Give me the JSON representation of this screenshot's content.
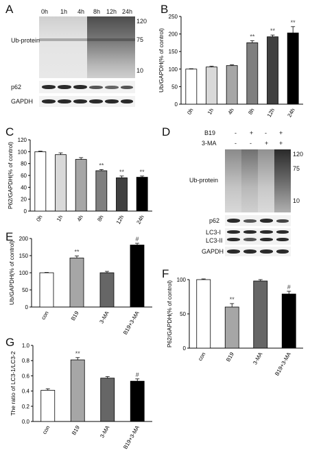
{
  "panels": {
    "A": {
      "letter": "A",
      "lanes": [
        "0h",
        "1h",
        "4h",
        "8h",
        "12h",
        "24h"
      ],
      "markers": [
        "120",
        "75",
        "10"
      ],
      "rows": [
        "Ub-protein",
        "p62",
        "GAPDH"
      ]
    },
    "D": {
      "letter": "D",
      "conditions": [
        {
          "label": "B19",
          "signs": [
            "-",
            "+",
            "-",
            "+"
          ]
        },
        {
          "label": "3-MA",
          "signs": [
            "-",
            "-",
            "+",
            "+"
          ]
        }
      ],
      "markers": [
        "120",
        "75",
        "10"
      ],
      "rows": [
        "Ub-protein",
        "p62",
        "LC3-I",
        "LC3-II",
        "GAPDH"
      ]
    }
  },
  "chart_data": [
    {
      "id": "B",
      "letter": "B",
      "type": "bar",
      "categories": [
        "0h",
        "1h",
        "4h",
        "8h",
        "12h",
        "24h"
      ],
      "values": [
        100,
        106,
        110,
        175,
        192,
        203
      ],
      "errors": [
        1,
        2,
        2,
        6,
        5,
        18
      ],
      "annotations": [
        "",
        "",
        "",
        "**",
        "**",
        "**"
      ],
      "colors": [
        "#ffffff",
        "#d9d9d9",
        "#a6a6a6",
        "#7f7f7f",
        "#404040",
        "#000000"
      ],
      "ylabel": "Ub/GAPDH(% of control)",
      "ylim": [
        0,
        250
      ],
      "yticks": [
        "0",
        "50",
        "100",
        "150",
        "200",
        "250"
      ]
    },
    {
      "id": "C",
      "letter": "C",
      "type": "bar",
      "categories": [
        "0h",
        "1h",
        "4h",
        "8h",
        "12h",
        "24h"
      ],
      "values": [
        100,
        95,
        87,
        68,
        56,
        57
      ],
      "errors": [
        1,
        3,
        3,
        2,
        3,
        2
      ],
      "annotations": [
        "",
        "",
        "",
        "**",
        "**",
        "**"
      ],
      "colors": [
        "#ffffff",
        "#d9d9d9",
        "#a6a6a6",
        "#7f7f7f",
        "#404040",
        "#000000"
      ],
      "ylabel": "P62/GAPDH(% of control)",
      "ylim": [
        0,
        120
      ],
      "yticks": [
        "0",
        "20",
        "40",
        "60",
        "80",
        "100",
        "120"
      ]
    },
    {
      "id": "E",
      "letter": "E",
      "type": "bar",
      "categories": [
        "con",
        "B19",
        "3-MA",
        "B19+3-MA"
      ],
      "values": [
        100,
        143,
        100,
        181
      ],
      "errors": [
        1,
        6,
        4,
        5
      ],
      "annotations": [
        "",
        "**",
        "",
        "#"
      ],
      "colors": [
        "#ffffff",
        "#a6a6a6",
        "#666666",
        "#000000"
      ],
      "ylabel": "Ub/GAPDH(% of control)",
      "ylim": [
        0,
        200
      ],
      "yticks": [
        "0",
        "50",
        "100",
        "150",
        "200"
      ]
    },
    {
      "id": "F",
      "letter": "F",
      "type": "bar",
      "categories": [
        "con",
        "B19",
        "3-MA",
        "B19+3-MA"
      ],
      "values": [
        100,
        60,
        98,
        79
      ],
      "errors": [
        1,
        5,
        2,
        4
      ],
      "annotations": [
        "",
        "**",
        "",
        "#"
      ],
      "colors": [
        "#ffffff",
        "#a6a6a6",
        "#666666",
        "#000000"
      ],
      "ylabel": "P62/GAPDH(% of control)",
      "ylim": [
        0,
        100
      ],
      "yticks": [
        "0",
        "50",
        "100"
      ]
    },
    {
      "id": "G",
      "letter": "G",
      "type": "bar",
      "categories": [
        "con",
        "B19",
        "3-MA",
        "B19+3-MA"
      ],
      "values": [
        0.41,
        0.81,
        0.57,
        0.53
      ],
      "errors": [
        0.02,
        0.03,
        0.02,
        0.03
      ],
      "annotations": [
        "",
        "**",
        "",
        "#"
      ],
      "colors": [
        "#ffffff",
        "#a6a6a6",
        "#666666",
        "#000000"
      ],
      "ylabel": "The ratio of LC3-1/LC3-2",
      "ylim": [
        0,
        1.0
      ],
      "yticks": [
        "0.0",
        "0.2",
        "0.4",
        "0.6",
        "0.8",
        "1.0"
      ]
    }
  ]
}
